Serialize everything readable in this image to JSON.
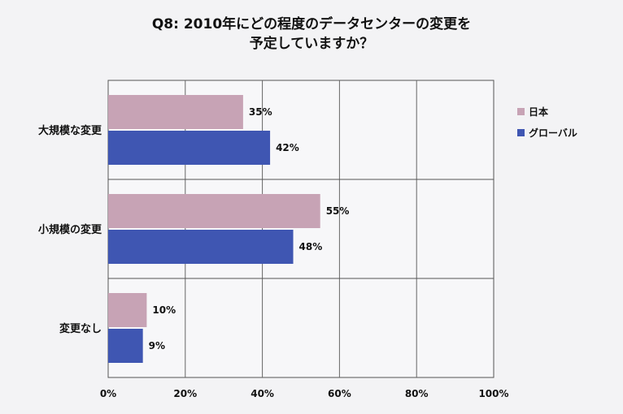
{
  "title_line1": "Q8: 2010年にどの程度のデータセンターの変更を",
  "title_line2": "予定していますか？",
  "chart_data": {
    "type": "bar",
    "orientation": "horizontal",
    "categories": [
      "大規模な変更",
      "小規模の変更",
      "変更なし"
    ],
    "series": [
      {
        "name": "日本",
        "values": [
          35,
          55,
          10
        ],
        "color": "#c7a3b5"
      },
      {
        "name": "グローバル",
        "values": [
          42,
          48,
          9
        ],
        "color": "#3f56b2"
      }
    ],
    "value_labels": [
      [
        "35%",
        "55%",
        "10%"
      ],
      [
        "42%",
        "48%",
        "9%"
      ]
    ],
    "xlim": [
      0,
      100
    ],
    "xticks": [
      "0%",
      "20%",
      "40%",
      "60%",
      "80%",
      "100%"
    ],
    "grid": true,
    "legend_position": "right"
  }
}
